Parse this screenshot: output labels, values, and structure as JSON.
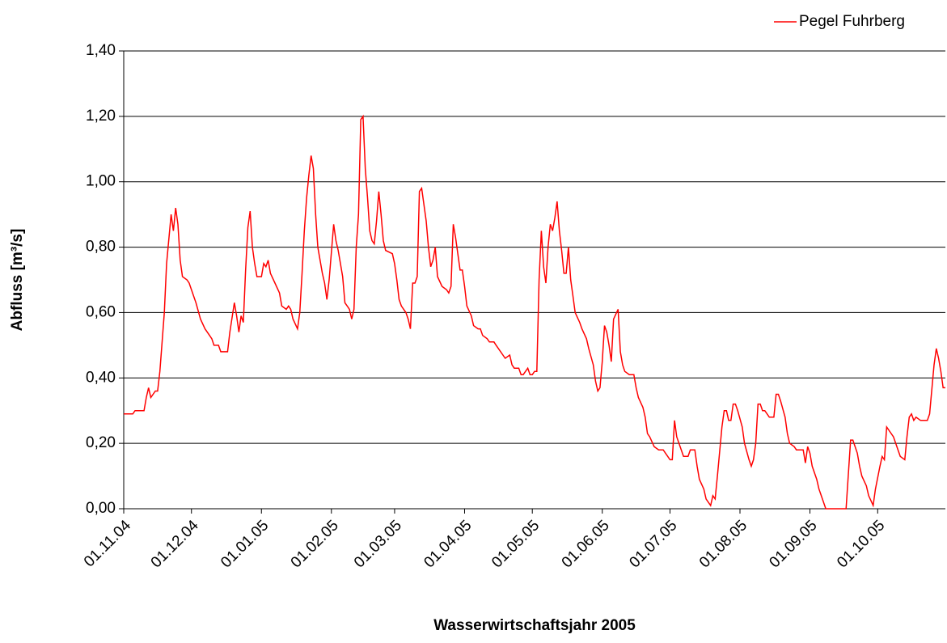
{
  "chart_data": {
    "type": "line",
    "xlabel": "Wasserwirtschaftsjahr 2005",
    "ylabel": "Abfluss [m³/s]",
    "legend": "top-right",
    "grid": true,
    "ylim": [
      0,
      1.4
    ],
    "yticks": [
      {
        "value": 0,
        "label": "0,00"
      },
      {
        "value": 0.2,
        "label": "0,20"
      },
      {
        "value": 0.4,
        "label": "0,40"
      },
      {
        "value": 0.6,
        "label": "0,60"
      },
      {
        "value": 0.8,
        "label": "0,80"
      },
      {
        "value": 1.0,
        "label": "1,00"
      },
      {
        "value": 1.2,
        "label": "1,20"
      },
      {
        "value": 1.4,
        "label": "1,40"
      }
    ],
    "xlim": [
      "01.11.04",
      "31.10.05"
    ],
    "xticks": [
      "01.11.04",
      "01.12.04",
      "01.01.05",
      "01.02.05",
      "01.03.05",
      "01.04.05",
      "01.05.05",
      "01.06.05",
      "01.07.05",
      "01.08.05",
      "01.09.05",
      "01.10.05"
    ],
    "x": [
      "01.11.04",
      "05.11.04",
      "06.11.04",
      "10.11.04",
      "11.11.04",
      "12.11.04",
      "13.11.04",
      "15.11.04",
      "16.11.04",
      "17.11.04",
      "19.11.04",
      "20.11.04",
      "22.11.04",
      "23.11.04",
      "24.11.04",
      "25.11.04",
      "26.11.04",
      "27.11.04",
      "29.11.04",
      "30.11.04",
      "01.12.04",
      "02.12.04",
      "03.12.04",
      "05.12.04",
      "07.12.04",
      "09.12.04",
      "10.12.04",
      "11.12.04",
      "13.12.04",
      "14.12.04",
      "17.12.04",
      "18.12.04",
      "20.12.04",
      "21.12.04",
      "22.12.04",
      "23.12.04",
      "24.12.04",
      "25.12.04",
      "26.12.04",
      "27.12.04",
      "28.12.04",
      "29.12.04",
      "30.12.04",
      "01.01.05",
      "02.01.05",
      "03.01.05",
      "04.01.05",
      "05.01.05",
      "07.01.05",
      "09.01.05",
      "10.01.05",
      "12.01.05",
      "13.01.05",
      "14.01.05",
      "15.01.05",
      "17.01.05",
      "18.01.05",
      "19.01.05",
      "20.01.05",
      "21.01.05",
      "22.01.05",
      "23.01.05",
      "24.01.05",
      "25.01.05",
      "26.01.05",
      "28.01.05",
      "29.01.05",
      "30.01.05",
      "31.01.05",
      "02.02.05",
      "03.02.05",
      "04.02.05",
      "06.02.05",
      "07.02.05",
      "08.02.05",
      "09.02.05",
      "10.02.05",
      "11.02.05",
      "12.02.05",
      "13.02.05",
      "14.02.05",
      "15.02.05",
      "16.02.05",
      "17.02.05",
      "18.02.05",
      "19.02.05",
      "20.02.05",
      "21.02.05",
      "22.02.05",
      "23.02.05",
      "24.02.05",
      "25.02.05",
      "28.02.05",
      "01.03.05",
      "02.03.05",
      "03.03.05",
      "04.03.05",
      "06.03.05",
      "07.03.05",
      "08.03.05",
      "09.03.05",
      "10.03.05",
      "11.03.05",
      "12.03.05",
      "13.03.05",
      "15.03.05",
      "16.03.05",
      "17.03.05",
      "18.03.05",
      "19.03.05",
      "20.03.05",
      "22.03.05",
      "24.03.05",
      "25.03.05",
      "26.03.05",
      "27.03.05",
      "28.03.05",
      "29.03.05",
      "30.03.05",
      "31.03.05",
      "01.04.05",
      "02.04.05",
      "04.04.05",
      "05.04.05",
      "07.04.05",
      "08.04.05",
      "09.04.05",
      "11.04.05",
      "12.04.05",
      "14.04.05",
      "15.04.05",
      "16.04.05",
      "18.04.05",
      "19.04.05",
      "21.04.05",
      "22.04.05",
      "23.04.05",
      "25.04.05",
      "26.04.05",
      "27.04.05",
      "29.04.05",
      "30.04.05",
      "01.05.05",
      "02.05.05",
      "03.05.05",
      "04.05.05",
      "05.05.05",
      "06.05.05",
      "07.05.05",
      "08.05.05",
      "09.05.05",
      "10.05.05",
      "11.05.05",
      "12.05.05",
      "13.05.05",
      "14.05.05",
      "15.05.05",
      "16.05.05",
      "17.05.05",
      "18.05.05",
      "19.05.05",
      "20.05.05",
      "22.05.05",
      "23.05.05",
      "25.05.05",
      "26.05.05",
      "28.05.05",
      "29.05.05",
      "30.05.05",
      "31.05.05",
      "01.06.05",
      "02.06.05",
      "03.06.05",
      "04.06.05",
      "05.06.05",
      "06.06.05",
      "08.06.05",
      "09.06.05",
      "10.06.05",
      "11.06.05",
      "13.06.05",
      "15.06.05",
      "16.06.05",
      "17.06.05",
      "19.06.05",
      "20.06.05",
      "21.06.05",
      "22.06.05",
      "24.06.05",
      "26.06.05",
      "28.06.05",
      "29.06.05",
      "01.07.05",
      "02.07.05",
      "03.07.05",
      "04.07.05",
      "06.07.05",
      "07.07.05",
      "09.07.05",
      "10.07.05",
      "12.07.05",
      "13.07.05",
      "14.07.05",
      "16.07.05",
      "17.07.05",
      "19.07.05",
      "20.07.05",
      "21.07.05",
      "22.07.05",
      "24.07.05",
      "25.07.05",
      "26.07.05",
      "27.07.05",
      "28.07.05",
      "29.07.05",
      "30.07.05",
      "31.07.05",
      "02.08.05",
      "03.08.05",
      "05.08.05",
      "06.08.05",
      "07.08.05",
      "08.08.05",
      "09.08.05",
      "10.08.05",
      "11.08.05",
      "12.08.05",
      "14.08.05",
      "16.08.05",
      "17.08.05",
      "18.08.05",
      "19.08.05",
      "21.08.05",
      "22.08.05",
      "23.08.05",
      "25.08.05",
      "26.08.05",
      "29.08.05",
      "30.08.05",
      "31.08.05",
      "01.09.05",
      "02.09.05",
      "04.09.05",
      "05.09.05",
      "06.09.05",
      "08.09.05",
      "17.09.05",
      "19.09.05",
      "20.09.05",
      "22.09.05",
      "23.09.05",
      "24.09.05",
      "26.09.05",
      "27.09.05",
      "29.09.05",
      "30.09.05",
      "02.10.05",
      "03.10.05",
      "04.10.05",
      "05.10.05",
      "06.10.05",
      "08.10.05",
      "09.10.05",
      "10.10.05",
      "11.10.05",
      "13.10.05",
      "14.10.05",
      "15.10.05",
      "16.10.05",
      "17.10.05",
      "18.10.05",
      "20.10.05",
      "23.10.05",
      "24.10.05",
      "26.10.05",
      "27.10.05",
      "28.10.05",
      "29.10.05",
      "30.10.05",
      "31.10.05"
    ],
    "series": [
      {
        "name": "Pegel Fuhrberg",
        "color": "#ff0000",
        "values": [
          0.29,
          0.29,
          0.3,
          0.3,
          0.34,
          0.37,
          0.34,
          0.36,
          0.36,
          0.42,
          0.6,
          0.75,
          0.9,
          0.85,
          0.92,
          0.87,
          0.76,
          0.71,
          0.7,
          0.69,
          0.67,
          0.65,
          0.63,
          0.58,
          0.55,
          0.53,
          0.52,
          0.5,
          0.5,
          0.48,
          0.48,
          0.54,
          0.63,
          0.59,
          0.54,
          0.59,
          0.57,
          0.73,
          0.86,
          0.91,
          0.8,
          0.75,
          0.71,
          0.71,
          0.75,
          0.74,
          0.76,
          0.72,
          0.69,
          0.66,
          0.62,
          0.61,
          0.62,
          0.61,
          0.58,
          0.55,
          0.6,
          0.72,
          0.85,
          0.95,
          1.02,
          1.08,
          1.04,
          0.9,
          0.8,
          0.72,
          0.69,
          0.64,
          0.7,
          0.87,
          0.82,
          0.79,
          0.71,
          0.63,
          0.62,
          0.61,
          0.58,
          0.61,
          0.8,
          0.9,
          1.19,
          1.2,
          1.04,
          0.95,
          0.85,
          0.82,
          0.81,
          0.88,
          0.97,
          0.9,
          0.82,
          0.79,
          0.78,
          0.75,
          0.7,
          0.64,
          0.62,
          0.6,
          0.58,
          0.55,
          0.69,
          0.69,
          0.71,
          0.97,
          0.98,
          0.88,
          0.8,
          0.74,
          0.76,
          0.8,
          0.71,
          0.68,
          0.67,
          0.66,
          0.68,
          0.87,
          0.83,
          0.78,
          0.73,
          0.73,
          0.68,
          0.62,
          0.59,
          0.56,
          0.55,
          0.55,
          0.53,
          0.52,
          0.51,
          0.51,
          0.5,
          0.49,
          0.47,
          0.46,
          0.47,
          0.44,
          0.43,
          0.43,
          0.41,
          0.41,
          0.43,
          0.41,
          0.41,
          0.42,
          0.42,
          0.7,
          0.85,
          0.74,
          0.69,
          0.8,
          0.87,
          0.85,
          0.89,
          0.94,
          0.85,
          0.79,
          0.72,
          0.72,
          0.8,
          0.7,
          0.65,
          0.6,
          0.57,
          0.55,
          0.52,
          0.49,
          0.44,
          0.39,
          0.36,
          0.37,
          0.45,
          0.56,
          0.54,
          0.5,
          0.45,
          0.58,
          0.61,
          0.48,
          0.44,
          0.42,
          0.41,
          0.41,
          0.37,
          0.34,
          0.31,
          0.28,
          0.23,
          0.22,
          0.19,
          0.18,
          0.18,
          0.17,
          0.15,
          0.15,
          0.27,
          0.22,
          0.18,
          0.16,
          0.16,
          0.18,
          0.18,
          0.13,
          0.09,
          0.06,
          0.03,
          0.01,
          0.04,
          0.03,
          0.1,
          0.25,
          0.3,
          0.3,
          0.27,
          0.27,
          0.32,
          0.32,
          0.3,
          0.25,
          0.2,
          0.15,
          0.13,
          0.15,
          0.2,
          0.32,
          0.32,
          0.3,
          0.3,
          0.28,
          0.28,
          0.35,
          0.35,
          0.33,
          0.28,
          0.23,
          0.2,
          0.19,
          0.18,
          0.18,
          0.14,
          0.19,
          0.17,
          0.13,
          0.09,
          0.06,
          0.04,
          0.0,
          0.0,
          0.21,
          0.21,
          0.17,
          0.13,
          0.1,
          0.07,
          0.04,
          0.01,
          0.06,
          0.13,
          0.16,
          0.15,
          0.25,
          0.24,
          0.22,
          0.2,
          0.18,
          0.16,
          0.15,
          0.22,
          0.28,
          0.29,
          0.27,
          0.28,
          0.27,
          0.27,
          0.29,
          0.44,
          0.49,
          0.46,
          0.42,
          0.37,
          0.37
        ]
      }
    ]
  }
}
